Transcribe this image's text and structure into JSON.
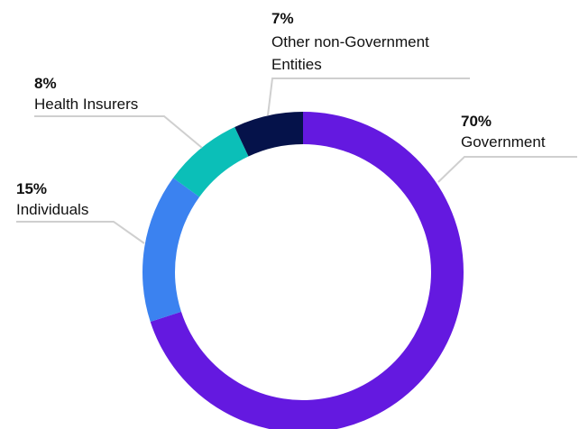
{
  "chart_data": {
    "type": "pie",
    "variant": "donut",
    "slices": [
      {
        "label": "Government",
        "value": 70,
        "value_label": "70%",
        "color": "#6419e0"
      },
      {
        "label": "Individuals",
        "value": 15,
        "value_label": "15%",
        "color": "#3b82f0"
      },
      {
        "label": "Health Insurers",
        "value": 8,
        "value_label": "8%",
        "color": "#0bbfb8"
      },
      {
        "label_lines": [
          "Other non-Government",
          "Entities"
        ],
        "value": 7,
        "value_label": "7%",
        "color": "#05124a"
      }
    ]
  }
}
